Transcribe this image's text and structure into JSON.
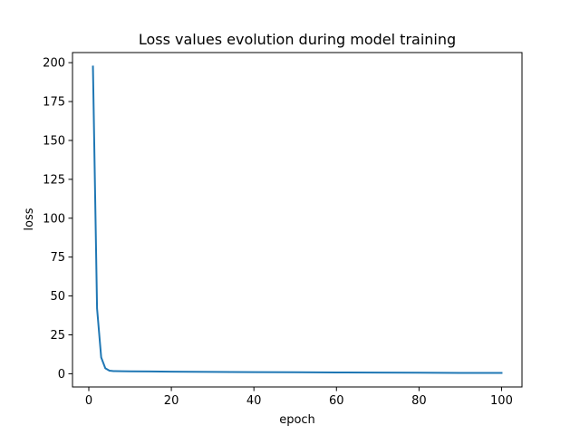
{
  "chart_data": {
    "type": "line",
    "title": "Loss values evolution during model training",
    "xlabel": "epoch",
    "ylabel": "loss",
    "xlim": [
      -3.95,
      104.95
    ],
    "ylim": [
      -8.5,
      206.5
    ],
    "xticks": [
      0,
      20,
      40,
      60,
      80,
      100
    ],
    "yticks": [
      0,
      25,
      50,
      75,
      100,
      125,
      150,
      175,
      200
    ],
    "grid": false,
    "legend": "none",
    "line_color": "#1f77b4",
    "series": [
      {
        "x": [
          1,
          2,
          3,
          4,
          5,
          6,
          8,
          10,
          15,
          20,
          30,
          40,
          50,
          60,
          70,
          80,
          90,
          100
        ],
        "values": [
          197.5,
          42.0,
          10.5,
          3.5,
          2.0,
          1.7,
          1.6,
          1.55,
          1.45,
          1.35,
          1.2,
          1.05,
          0.95,
          0.85,
          0.75,
          0.65,
          0.55,
          0.5
        ]
      }
    ]
  }
}
